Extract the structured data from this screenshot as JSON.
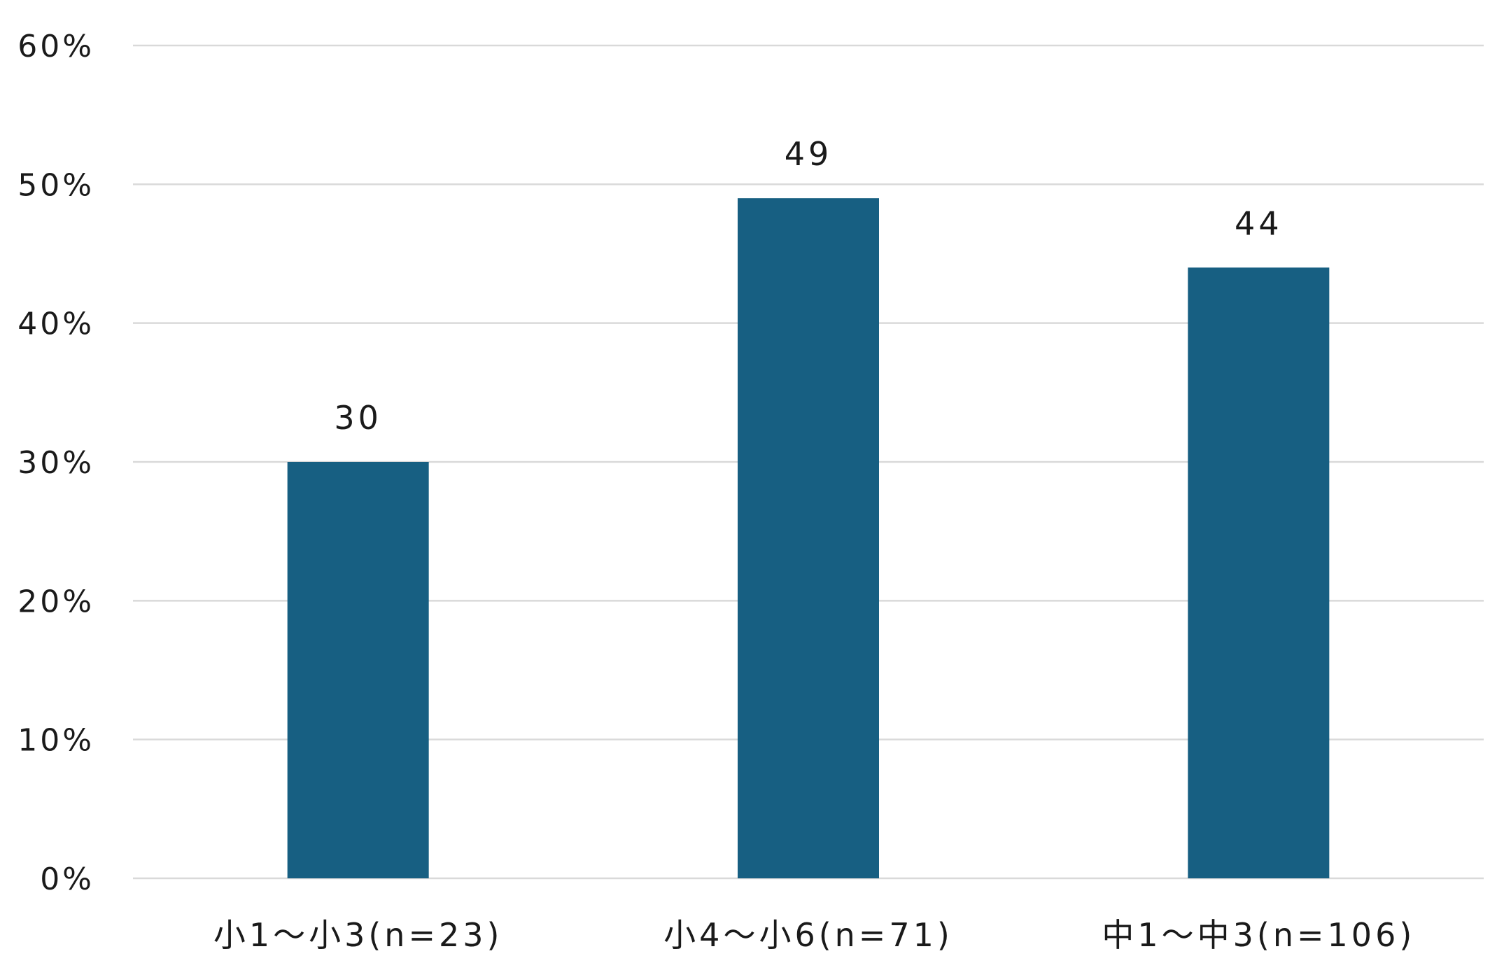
{
  "chart_data": {
    "type": "bar",
    "categories": [
      "小1〜小3(n=23)",
      "小4〜小6(n=71)",
      "中1〜中3(n=106)"
    ],
    "values": [
      30,
      49,
      44
    ],
    "data_labels": [
      "30",
      "49",
      "44"
    ],
    "y_ticks": [
      "0%",
      "10%",
      "20%",
      "30%",
      "40%",
      "50%",
      "60%"
    ],
    "ylim": [
      0,
      60
    ],
    "grid": true,
    "title": "",
    "xlabel": "",
    "ylabel": "",
    "colors": {
      "bar": "#175f82",
      "grid": "#d9d9d9",
      "text": "#1a1a1a"
    }
  }
}
